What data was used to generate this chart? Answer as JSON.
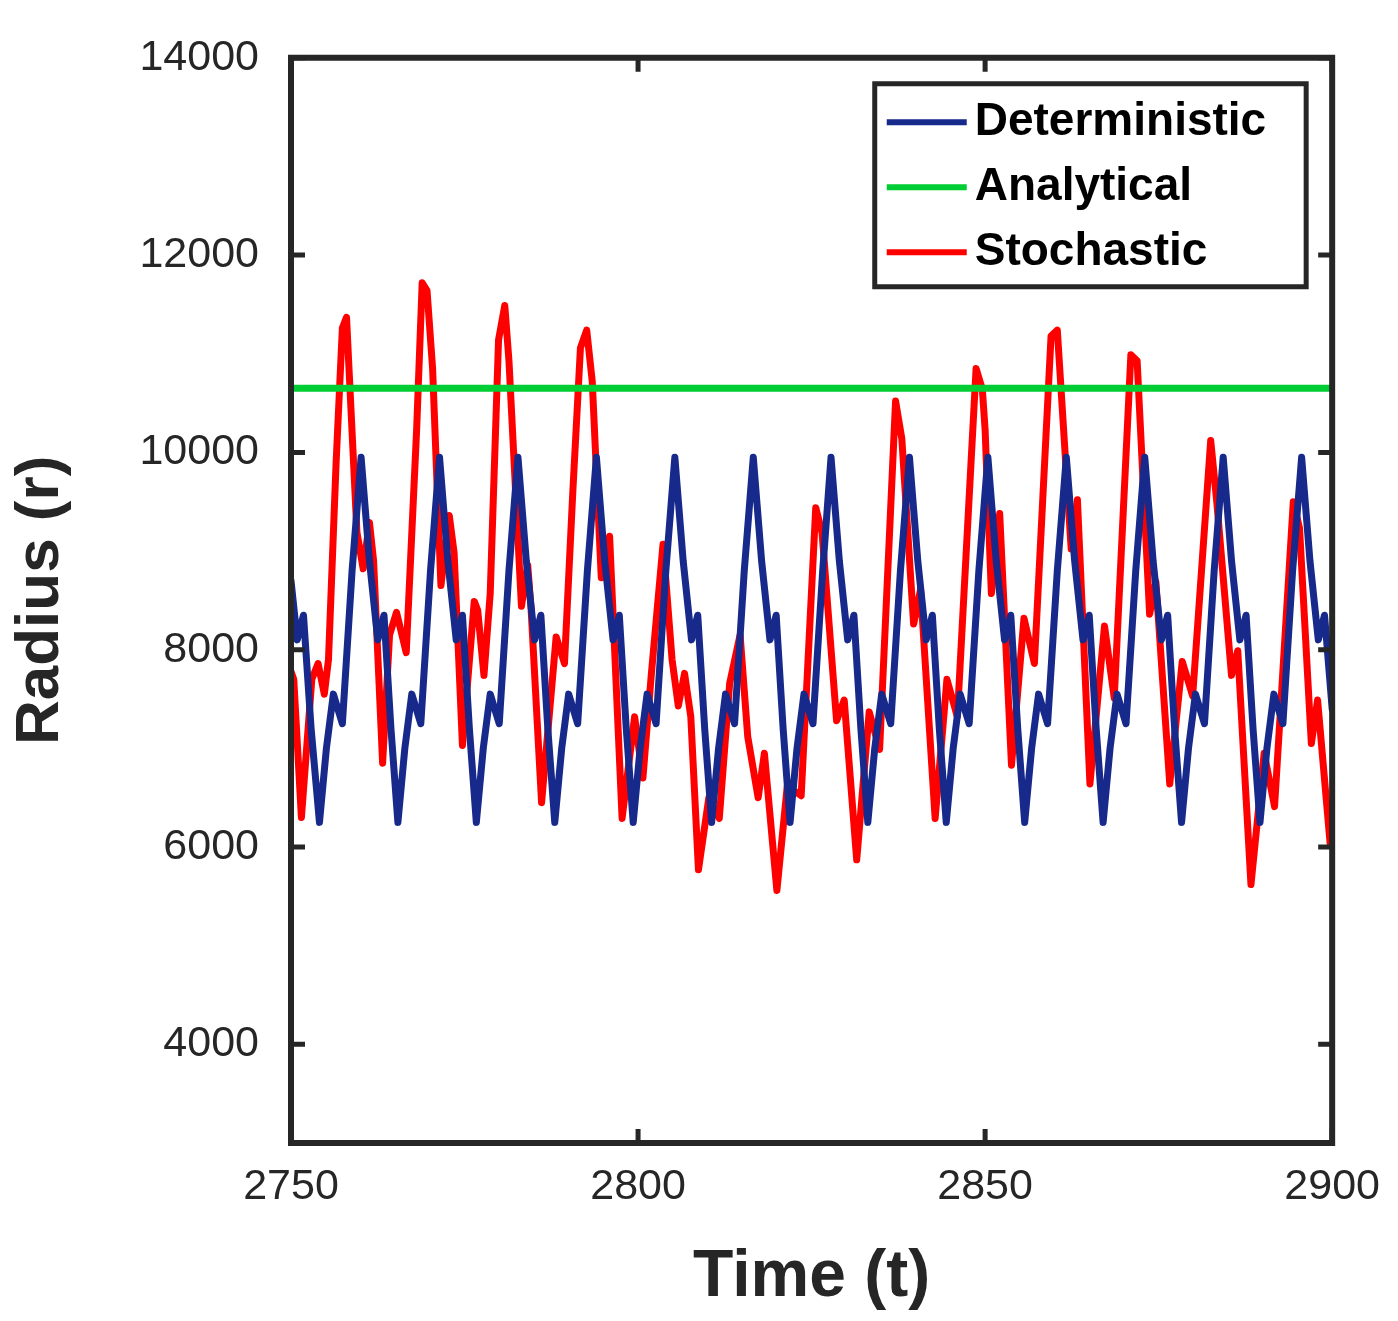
{
  "chart_data": {
    "type": "line",
    "xlabel": "Time (t)",
    "ylabel": "Radius (r)",
    "xlim": [
      2750,
      2900
    ],
    "ylim": [
      3000,
      14000
    ],
    "xticks": [
      2750,
      2800,
      2850,
      2900
    ],
    "yticks": [
      4000,
      6000,
      8000,
      10000,
      12000,
      14000
    ],
    "grid": false,
    "legend": "top right",
    "marker": "none",
    "line_style": "solid",
    "series": [
      {
        "name": "Deterministic",
        "color": "#17298a",
        "x": [
          2750,
          2750.9,
          2751.8,
          2752.9,
          2754.1,
          2755.1,
          2756.1,
          2757.4,
          2758.8,
          2760.1,
          2761.3,
          2762.5,
          2763.4,
          2764.4,
          2765.4,
          2766.4,
          2767.4,
          2768.7,
          2770.1,
          2771.4,
          2772.6,
          2773.8,
          2774.7,
          2775.7,
          2776.7,
          2777.7,
          2778.7,
          2780.0,
          2781.4,
          2782.7,
          2783.9,
          2785.1,
          2786.0,
          2787.0,
          2788.0,
          2789.0,
          2790.0,
          2791.3,
          2792.7,
          2794.0,
          2795.2,
          2796.4,
          2797.3,
          2798.3,
          2799.3,
          2800.3,
          2801.3,
          2802.6,
          2804.0,
          2805.3,
          2806.5,
          2807.7,
          2808.6,
          2809.6,
          2810.6,
          2811.6,
          2812.6,
          2813.9,
          2815.3,
          2816.6,
          2817.8,
          2819.0,
          2819.9,
          2820.9,
          2821.9,
          2822.9,
          2823.9,
          2825.2,
          2826.6,
          2827.8,
          2829.0,
          2830.2,
          2831.1,
          2832.1,
          2833.1,
          2834.1,
          2835.1,
          2836.4,
          2837.8,
          2839.1,
          2840.3,
          2841.5,
          2842.4,
          2843.4,
          2844.4,
          2845.4,
          2846.4,
          2847.7,
          2849.1,
          2850.4,
          2851.6,
          2852.8,
          2853.7,
          2854.7,
          2855.7,
          2856.7,
          2857.7,
          2859.0,
          2860.4,
          2861.7,
          2862.9,
          2864.1,
          2865.0,
          2866.0,
          2867.0,
          2868.0,
          2869.0,
          2870.3,
          2871.7,
          2873.0,
          2874.2,
          2875.4,
          2876.3,
          2877.3,
          2878.3,
          2879.3,
          2880.3,
          2881.6,
          2883.0,
          2884.3,
          2885.5,
          2886.7,
          2887.6,
          2888.6,
          2889.6,
          2890.6,
          2891.6,
          2892.9,
          2894.3,
          2895.6,
          2896.8,
          2898.0,
          2898.9,
          2900
        ],
        "values": [
          8700,
          8100,
          8350,
          7200,
          6250,
          7000,
          7550,
          7250,
          8800,
          9950,
          8900,
          8100,
          8350,
          7200,
          6250,
          7000,
          7550,
          7250,
          8800,
          9950,
          8900,
          8100,
          8350,
          7200,
          6250,
          7000,
          7550,
          7250,
          8800,
          9950,
          8900,
          8100,
          8350,
          7200,
          6250,
          7000,
          7550,
          7250,
          8800,
          9950,
          8900,
          8100,
          8350,
          7200,
          6250,
          7000,
          7550,
          7250,
          8800,
          9950,
          8900,
          8100,
          8350,
          7200,
          6250,
          7000,
          7550,
          7250,
          8800,
          9950,
          8900,
          8100,
          8350,
          7200,
          6250,
          7000,
          7550,
          7250,
          8800,
          9950,
          8900,
          8100,
          8350,
          7200,
          6250,
          7000,
          7550,
          7250,
          8800,
          9950,
          8900,
          8100,
          8350,
          7200,
          6250,
          7000,
          7550,
          7250,
          8800,
          9950,
          8900,
          8100,
          8350,
          7200,
          6250,
          7000,
          7550,
          7250,
          8800,
          9950,
          8900,
          8100,
          8350,
          7200,
          6250,
          7000,
          7550,
          7250,
          8800,
          9950,
          8900,
          8100,
          8350,
          7200,
          6250,
          7000,
          7550,
          7250,
          8800,
          9950,
          8900,
          8100,
          8350,
          7200,
          6250,
          7000,
          7550,
          7250,
          8800,
          9950,
          8900,
          8100,
          8350,
          7400
        ]
      },
      {
        "name": "Analytical",
        "color": "#00cc33",
        "x": [
          2750,
          2900
        ],
        "values": [
          10650,
          10650
        ]
      },
      {
        "name": "Stochastic",
        "color": "#ff0000",
        "x": [
          2750,
          2750.4,
          2751.5,
          2753.0,
          2753.9,
          2754.8,
          2755.4,
          2756.5,
          2757.4,
          2758.0,
          2758.3,
          2759.5,
          2760.4,
          2761.3,
          2761.9,
          2763.2,
          2764.2,
          2765.2,
          2766.6,
          2768.1,
          2768.9,
          2769.6,
          2770.4,
          2771.6,
          2772.8,
          2773.5,
          2774.7,
          2776.4,
          2776.9,
          2777.8,
          2778.7,
          2779.9,
          2780.8,
          2781.4,
          2783.2,
          2784.1,
          2784.6,
          2786.1,
          2788.2,
          2789.4,
          2790.6,
          2791.7,
          2792.6,
          2793.4,
          2794.7,
          2795.9,
          2797.7,
          2799.5,
          2800.7,
          2801.9,
          2803.6,
          2804.9,
          2805.8,
          2806.7,
          2807.6,
          2808.7,
          2810.2,
          2811.7,
          2813.2,
          2814.7,
          2815.8,
          2817.3,
          2818.2,
          2820.0,
          2821.5,
          2823.5,
          2825.6,
          2826.5,
          2828.6,
          2829.7,
          2831.5,
          2833.3,
          2834.8,
          2837.1,
          2838.0,
          2839.7,
          2840.7,
          2842.8,
          2844.5,
          2846.0,
          2848.7,
          2849.6,
          2850.0,
          2850.9,
          2852.1,
          2853.8,
          2855.6,
          2857.1,
          2859.5,
          2860.4,
          2862.4,
          2863.3,
          2865.1,
          2867.2,
          2868.6,
          2871.0,
          2871.9,
          2873.7,
          2874.6,
          2876.6,
          2878.4,
          2879.9,
          2882.5,
          2883.4,
          2885.5,
          2886.4,
          2888.3,
          2890.2,
          2891.7,
          2894.4,
          2895.3,
          2897.0,
          2897.9,
          2899.7,
          2900
        ],
        "values": [
          7780,
          7700,
          6300,
          7700,
          7860,
          7550,
          7900,
          9900,
          11260,
          11370,
          10930,
          9190,
          8820,
          9290,
          8900,
          6850,
          8150,
          8380,
          7970,
          10230,
          11720,
          11640,
          10850,
          8650,
          9360,
          8980,
          7030,
          8490,
          8400,
          7740,
          8570,
          11140,
          11490,
          10930,
          8440,
          8860,
          8400,
          6450,
          8130,
          7860,
          9600,
          11060,
          11240,
          10720,
          8730,
          9150,
          6290,
          7320,
          6700,
          7740,
          9070,
          7900,
          7430,
          7760,
          7320,
          5770,
          6500,
          6290,
          7660,
          8150,
          7120,
          6500,
          6950,
          5560,
          6620,
          6520,
          9440,
          9190,
          7280,
          7490,
          5870,
          7370,
          6990,
          10520,
          10140,
          8260,
          8610,
          6290,
          7700,
          7320,
          10850,
          10640,
          10230,
          8570,
          9380,
          6830,
          8320,
          7860,
          11180,
          11240,
          9020,
          9520,
          6640,
          8240,
          7510,
          10990,
          10930,
          8360,
          8690,
          6640,
          7880,
          7530,
          10120,
          9480,
          7740,
          7990,
          5620,
          6950,
          6410,
          9500,
          9230,
          7050,
          7490,
          6040,
          6120
        ]
      }
    ]
  }
}
